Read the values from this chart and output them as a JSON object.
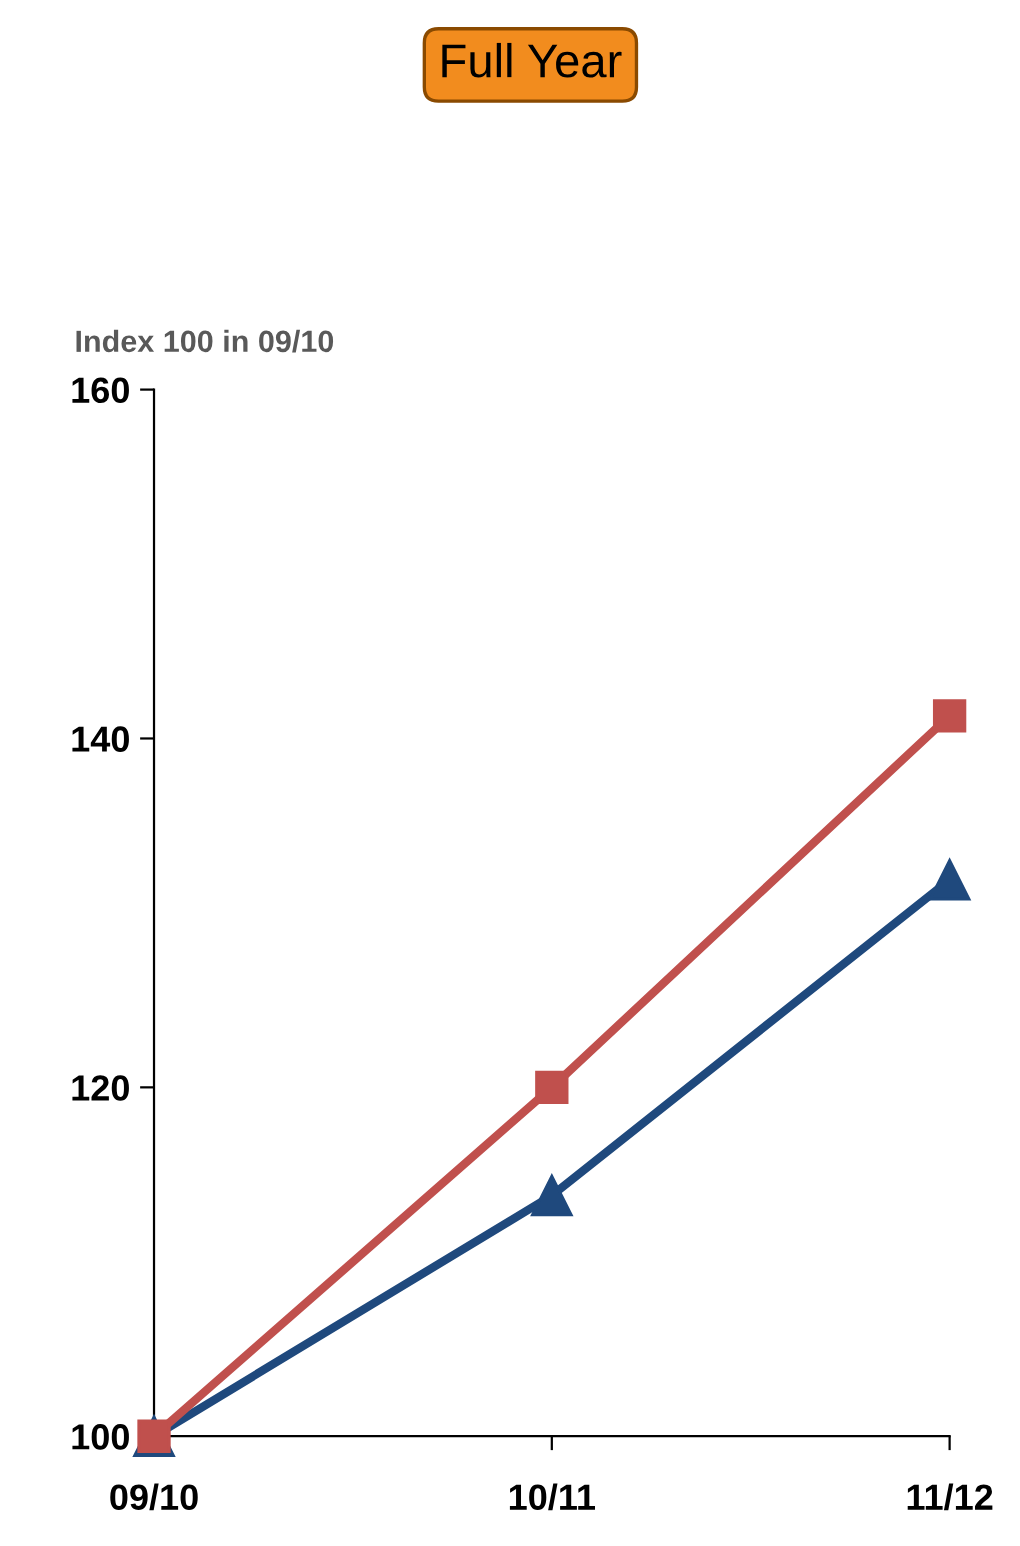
{
  "chart_data": {
    "type": "line",
    "title": "Full Year",
    "ylabel": "Index 100 in 09/10",
    "categories": [
      "09/10",
      "10/11",
      "11/12"
    ],
    "series": [
      {
        "color": "#c0504d",
        "marker": "square",
        "values": [
          100,
          120,
          141.3
        ]
      },
      {
        "color": "#1f497d",
        "marker": "triangle",
        "values": [
          100,
          113.8,
          131.9
        ]
      }
    ],
    "ylim": [
      100,
      160
    ],
    "yticks": [
      100,
      120,
      140,
      160
    ],
    "grid": false,
    "legend": false,
    "line_style": "solid"
  }
}
